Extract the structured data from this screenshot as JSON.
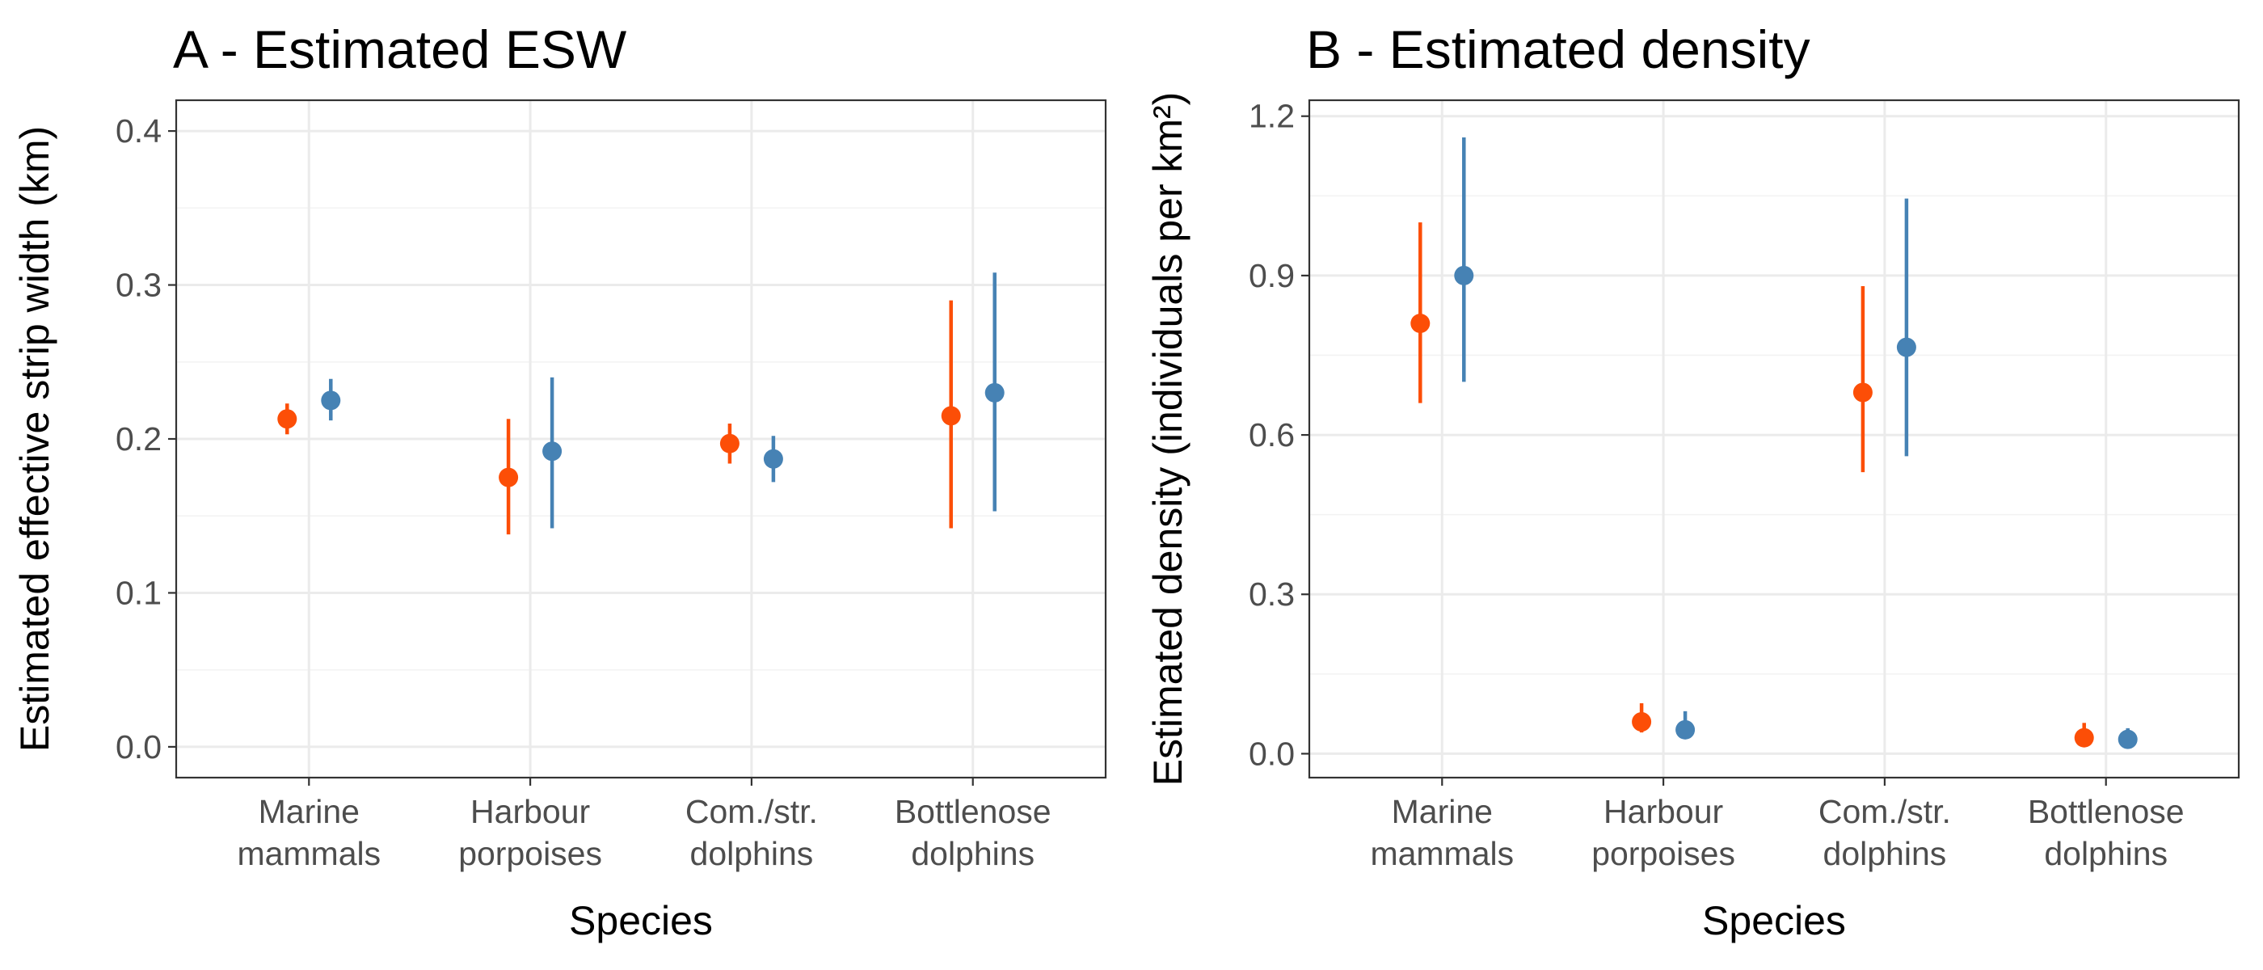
{
  "chart_data": [
    {
      "type": "scatter",
      "title": "A - Estimated ESW",
      "xlabel": "Species",
      "ylabel": "Estimated effective strip width (km)",
      "ylim": [
        -0.02,
        0.42
      ],
      "yticks": [
        "0.0",
        "0.1",
        "0.2",
        "0.3",
        "0.4"
      ],
      "grid": true,
      "categories": [
        [
          "Marine",
          "mammals"
        ],
        [
          "Harbour",
          "porpoises"
        ],
        [
          "Com./str.",
          "dolphins"
        ],
        [
          "Bottlenose",
          "dolphins"
        ]
      ],
      "series": [
        {
          "color": "#fc4e07",
          "values": [
            0.213,
            0.175,
            0.197,
            0.215
          ],
          "lower": [
            0.203,
            0.138,
            0.184,
            0.142
          ],
          "upper": [
            0.223,
            0.213,
            0.21,
            0.29
          ]
        },
        {
          "color": "#4682b4",
          "values": [
            0.225,
            0.192,
            0.187,
            0.23
          ],
          "lower": [
            0.212,
            0.142,
            0.172,
            0.153
          ],
          "upper": [
            0.239,
            0.24,
            0.202,
            0.308
          ]
        }
      ]
    },
    {
      "type": "scatter",
      "title": "B - Estimated density",
      "xlabel": "Species",
      "ylabel": "Estimated density (individuals per km²)",
      "ylim": [
        -0.045,
        1.23
      ],
      "yticks": [
        "0.0",
        "0.3",
        "0.6",
        "0.9",
        "1.2"
      ],
      "grid": true,
      "categories": [
        [
          "Marine",
          "mammals"
        ],
        [
          "Harbour",
          "porpoises"
        ],
        [
          "Com./str.",
          "dolphins"
        ],
        [
          "Bottlenose",
          "dolphins"
        ]
      ],
      "series": [
        {
          "color": "#fc4e07",
          "values": [
            0.81,
            0.06,
            0.68,
            0.03
          ],
          "lower": [
            0.66,
            0.04,
            0.53,
            0.015
          ],
          "upper": [
            1.0,
            0.095,
            0.88,
            0.058
          ]
        },
        {
          "color": "#4682b4",
          "values": [
            0.9,
            0.045,
            0.765,
            0.027
          ],
          "lower": [
            0.7,
            0.03,
            0.56,
            0.013
          ],
          "upper": [
            1.16,
            0.08,
            1.045,
            0.048
          ]
        }
      ]
    }
  ]
}
